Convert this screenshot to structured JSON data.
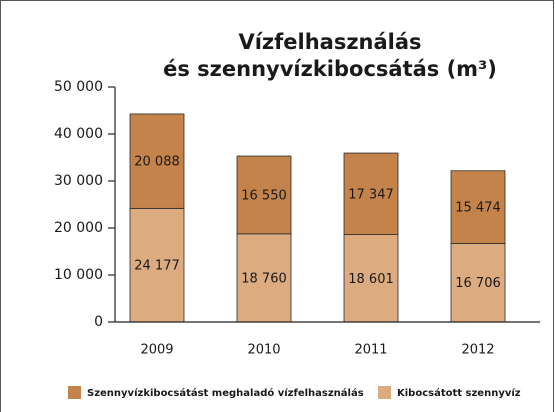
{
  "chart_data": {
    "type": "bar",
    "stacked": true,
    "title": [
      "Vízfelhasználás",
      "és szennyvízkibocsátás (m³)"
    ],
    "categories": [
      "2009",
      "2010",
      "2011",
      "2012"
    ],
    "series": [
      {
        "name": "Kibocsátott szennyvíz",
        "color": "#dcab80",
        "values": [
          24177,
          18760,
          18601,
          16706
        ],
        "value_labels": [
          "24 177",
          "18 760",
          "18 601",
          "16 706"
        ]
      },
      {
        "name": "Szennyvízkibocsátást meghaladó vízfelhasználás",
        "color": "#c4834a",
        "values": [
          20088,
          16550,
          17347,
          15474
        ],
        "value_labels": [
          "20 088",
          "16 550",
          "17 347",
          "15 474"
        ]
      }
    ],
    "ylim": [
      0,
      50000
    ],
    "yticks": [
      0,
      {
        "value": 10000,
        "label": "10 000"
      },
      {
        "value": 20000,
        "label": "20 000"
      },
      {
        "value": 30000,
        "label": "30 000"
      },
      {
        "value": 40000,
        "label": "40 000"
      },
      {
        "value": 50000,
        "label": "50 000"
      }
    ],
    "grid": false,
    "legend": "bottom"
  }
}
